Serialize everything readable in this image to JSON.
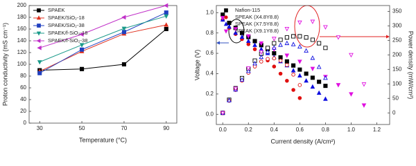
{
  "chart_data": [
    {
      "type": "line",
      "xlabel": "Temperature (°C)",
      "ylabel": "Proton conductivity (mS cm⁻¹)",
      "x": [
        30,
        50,
        70,
        90
      ],
      "xlim": [
        25,
        95
      ],
      "xticks": [
        30,
        50,
        70,
        90
      ],
      "ylim": [
        0,
        200
      ],
      "yticks": [
        0,
        20,
        40,
        60,
        80,
        100,
        120,
        140,
        160,
        180,
        200
      ],
      "series": [
        {
          "name": "SPAEK",
          "color": "#000000",
          "marker": "square",
          "filled": true,
          "values": [
            90,
            92,
            100,
            160
          ]
        },
        {
          "name": "SPAEK/SiO₂-18",
          "color": "#e0301e",
          "marker": "triangle",
          "filled": true,
          "values": [
            88,
            122,
            152,
            167
          ]
        },
        {
          "name": "SPAEK/SiO₂-38",
          "color": "#2040c0",
          "marker": "square",
          "filled": true,
          "values": [
            85,
            125,
            155,
            188
          ]
        },
        {
          "name": "SPAEK/f-SiO₂-18",
          "color": "#1a9a8a",
          "marker": "tri-down",
          "filled": true,
          "values": [
            104,
            133,
            161,
            182
          ]
        },
        {
          "name": "SPAEK/f-SiO₂-38",
          "color": "#c030c8",
          "marker": "tri-left",
          "filled": true,
          "values": [
            128,
            151,
            180,
            200
          ]
        }
      ]
    },
    {
      "type": "scatter",
      "xlabel": "Current density (A/cm²)",
      "ylabel": "Voltage (V)",
      "y2label": "Power density (mW/cm²)",
      "xlim": [
        -0.05,
        1.3
      ],
      "xticks": [
        {
          "value": 0,
          "label": "0.0"
        },
        {
          "value": 0.2,
          "label": "0.2"
        },
        {
          "value": 0.4,
          "label": "0.4"
        },
        {
          "value": 0.6,
          "label": "0.6"
        },
        {
          "value": 0.8,
          "label": "0.8"
        },
        {
          "value": 1,
          "label": "1.0"
        },
        {
          "value": 1.2,
          "label": "1.2"
        }
      ],
      "ylim": [
        -0.1,
        1.07
      ],
      "yticks": [
        {
          "value": 0,
          "label": "0.0"
        },
        {
          "value": 0.2,
          "label": "0.2"
        },
        {
          "value": 0.4,
          "label": "0.4"
        },
        {
          "value": 0.6,
          "label": "0.6"
        },
        {
          "value": 0.8,
          "label": "0.8"
        },
        {
          "value": 1,
          "label": "1.0"
        }
      ],
      "y2lim": [
        -40,
        370
      ],
      "y2ticks": [
        0,
        50,
        100,
        150,
        200,
        250,
        300,
        350
      ],
      "series": [
        {
          "name": "Nafion-115",
          "color": "#000000",
          "marker": "square",
          "filled": true,
          "x": [
            0,
            0.05,
            0.1,
            0.15,
            0.2,
            0.25,
            0.3,
            0.35,
            0.4,
            0.45,
            0.5,
            0.55,
            0.6,
            0.65,
            0.7,
            0.75,
            0.8
          ],
          "values": [
            0.98,
            0.9,
            0.85,
            0.8,
            0.76,
            0.72,
            0.68,
            0.64,
            0.6,
            0.56,
            0.52,
            0.48,
            0.44,
            0.4,
            0.36,
            0.32,
            0.28
          ]
        },
        {
          "name": "SPEAK (X4.8Y8.8)",
          "color": "#e01010",
          "marker": "circle",
          "filled": true,
          "x": [
            0,
            0.05,
            0.1,
            0.15,
            0.2,
            0.25,
            0.3,
            0.35,
            0.4,
            0.45,
            0.5,
            0.55,
            0.6
          ],
          "values": [
            0.93,
            0.85,
            0.79,
            0.74,
            0.69,
            0.64,
            0.59,
            0.53,
            0.47,
            0.4,
            0.33,
            0.24,
            0.16
          ]
        },
        {
          "name": "SPEAK (X7.5Y8.8)",
          "color": "#1010e0",
          "marker": "triangle",
          "filled": true,
          "x": [
            0,
            0.05,
            0.1,
            0.15,
            0.2,
            0.25,
            0.3,
            0.35,
            0.4,
            0.45,
            0.5,
            0.55,
            0.6,
            0.65,
            0.7,
            0.75,
            0.8
          ],
          "values": [
            0.93,
            0.86,
            0.8,
            0.76,
            0.72,
            0.68,
            0.64,
            0.6,
            0.56,
            0.52,
            0.48,
            0.43,
            0.38,
            0.33,
            0.27,
            0.21,
            0.15
          ]
        },
        {
          "name": "SPEAK (X9.1Y8.8)",
          "color": "#e010e0",
          "marker": "tri-down",
          "filled": true,
          "x": [
            0,
            0.1,
            0.2,
            0.3,
            0.4,
            0.5,
            0.6,
            0.7,
            0.8,
            0.9,
            1,
            1.1
          ],
          "values": [
            0.95,
            0.84,
            0.77,
            0.7,
            0.64,
            0.58,
            0.52,
            0.45,
            0.37,
            0.29,
            0.2,
            0.09
          ]
        },
        {
          "color": "#000000",
          "marker": "square",
          "filled": false,
          "axis": "y2",
          "x": [
            0,
            0.05,
            0.1,
            0.15,
            0.2,
            0.25,
            0.3,
            0.35,
            0.4,
            0.45,
            0.5,
            0.55,
            0.6,
            0.65,
            0.7,
            0.75,
            0.8
          ],
          "values": [
            0,
            45,
            85,
            120,
            152,
            180,
            204,
            224,
            240,
            252,
            260,
            264,
            264,
            260,
            252,
            240,
            224
          ]
        },
        {
          "color": "#e01010",
          "marker": "circle",
          "filled": false,
          "axis": "y2",
          "x": [
            0,
            0.05,
            0.1,
            0.15,
            0.2,
            0.25,
            0.3,
            0.35,
            0.4,
            0.45,
            0.5,
            0.55,
            0.6
          ],
          "values": [
            0,
            42,
            79,
            111,
            138,
            160,
            177,
            186,
            188,
            180,
            165,
            132,
            96
          ]
        },
        {
          "color": "#1010e0",
          "marker": "triangle",
          "filled": false,
          "axis": "y2",
          "x": [
            0,
            0.05,
            0.1,
            0.15,
            0.2,
            0.25,
            0.3,
            0.35,
            0.4,
            0.45,
            0.5,
            0.55,
            0.6,
            0.65,
            0.7,
            0.75,
            0.8
          ],
          "values": [
            0,
            43,
            80,
            114,
            144,
            170,
            192,
            210,
            224,
            234,
            240,
            236,
            228,
            214,
            189,
            158,
            120
          ]
        },
        {
          "color": "#e010e0",
          "marker": "tri-down",
          "filled": false,
          "axis": "y2",
          "x": [
            0,
            0.1,
            0.2,
            0.3,
            0.4,
            0.5,
            0.6,
            0.7,
            0.8,
            0.9,
            1,
            1.1
          ],
          "values": [
            0,
            84,
            154,
            210,
            256,
            290,
            312,
            315,
            296,
            261,
            200,
            99
          ]
        }
      ]
    }
  ]
}
